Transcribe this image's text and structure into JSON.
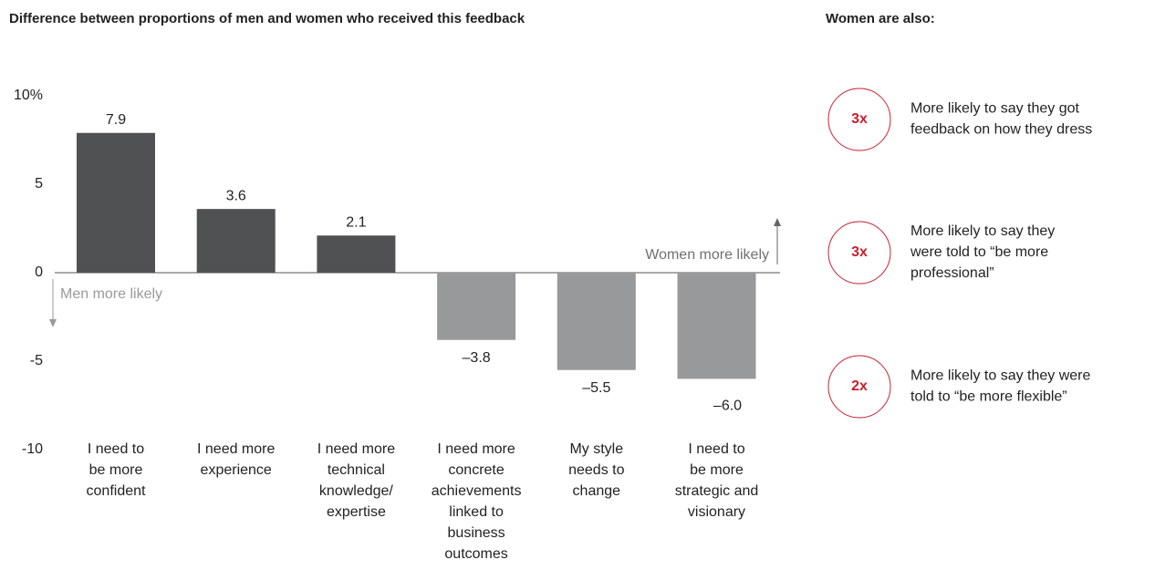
{
  "chart_data": {
    "type": "bar",
    "title": "Difference between proportions of men and women who received this feedback",
    "categories": [
      [
        "I need to",
        "be more",
        "confident"
      ],
      [
        "I need more",
        "experience"
      ],
      [
        "I need more",
        "technical",
        "knowledge/",
        "expertise"
      ],
      [
        "I need more",
        "concrete",
        "achievements",
        "linked to",
        "business",
        "outcomes"
      ],
      [
        "My style",
        "needs to",
        "change"
      ],
      [
        "I need to",
        "be more",
        "strategic and",
        "visionary"
      ]
    ],
    "values": [
      7.9,
      3.6,
      2.1,
      -3.8,
      -5.5,
      -6.0
    ],
    "value_labels": [
      "7.9",
      "3.6",
      "2.1",
      "–3.8",
      "–5.5",
      "–6.0"
    ],
    "colors": [
      "#505153",
      "#505153",
      "#505153",
      "#98999b",
      "#98999b",
      "#98999b"
    ],
    "ylim": [
      -10,
      10
    ],
    "yticks": [
      {
        "value": 10,
        "label": "10%"
      },
      5,
      0,
      -5,
      -10
    ],
    "annotations": [
      "Women more likely",
      "Men more likely"
    ],
    "side_panel": {
      "title": "Women are also:",
      "items": [
        {
          "badge": "3x",
          "lines": [
            "More likely to say they got",
            "feedback on how they dress"
          ]
        },
        {
          "badge": "3x",
          "lines": [
            "More likely to say they",
            "were told to “be more",
            "professional”"
          ]
        },
        {
          "badge": "2x",
          "lines": [
            "More likely to say they were",
            "told to “be more flexible”"
          ]
        }
      ]
    }
  }
}
